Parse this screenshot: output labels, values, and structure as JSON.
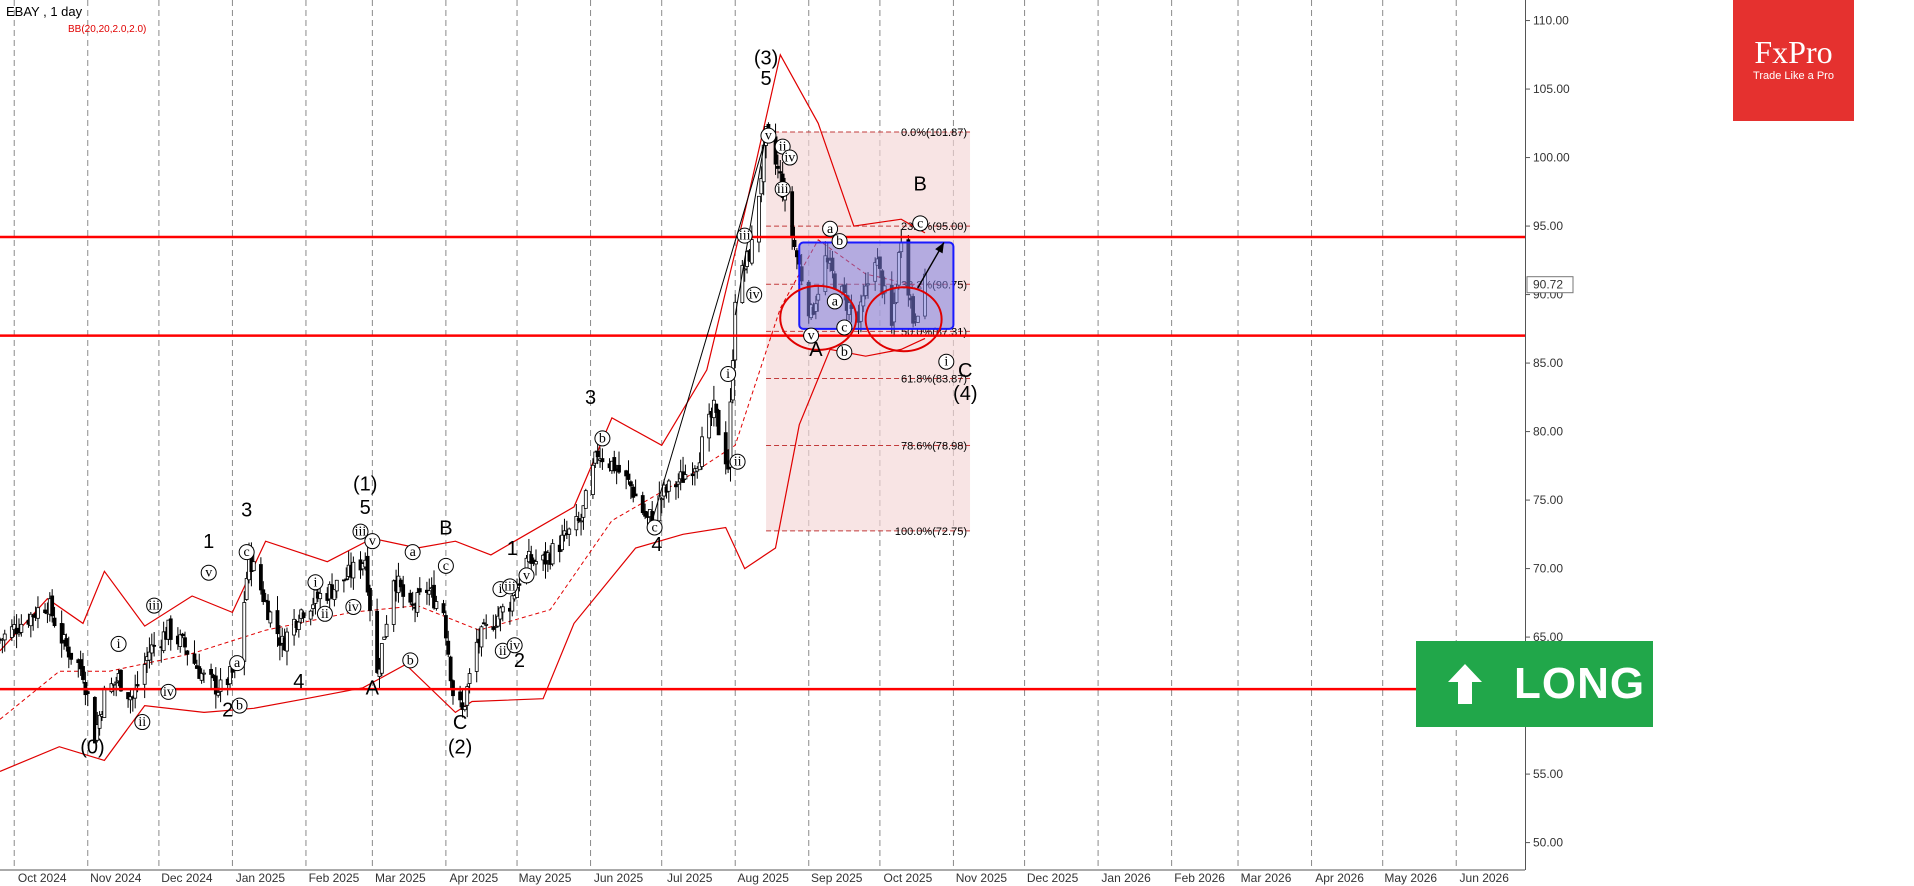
{
  "header": {
    "title": "EBAY , 1 day",
    "indicator": "BB(20,20,2.0,2.0)"
  },
  "logo": {
    "brand": "FxPro",
    "tagline": "Trade Like a Pro"
  },
  "badge": {
    "label": "LONG"
  },
  "colors": {
    "bollinger": "#e00000",
    "support": "#ff0000",
    "range_box": "#1a1aff",
    "fib_zone": "#f4d5d5",
    "badge": "#21a74a",
    "logo": "#e5312f"
  },
  "chart_data": {
    "type": "candlestick",
    "symbol": "EBAY",
    "timeframe": "1 day",
    "ylim": [
      48,
      111.5
    ],
    "y_ticks": [
      "50.00",
      "55.00",
      "60.00",
      "65.00",
      "70.00",
      "75.00",
      "80.00",
      "85.00",
      "90.00",
      "95.00",
      "100.00",
      "105.00",
      "110.00"
    ],
    "x_ticks": [
      "Oct 2024",
      "Nov 2024",
      "Dec 2024",
      "Jan 2025",
      "Feb 2025",
      "Mar 2025",
      "Apr 2025",
      "May 2025",
      "Jun 2025",
      "Jul 2025",
      "Aug 2025",
      "Sep 2025",
      "Oct 2025",
      "Nov 2025",
      "Dec 2025",
      "Jan 2026",
      "Feb 2026",
      "Mar 2026",
      "Apr 2026",
      "May 2026",
      "Jun 2026"
    ],
    "last_price": "90.72",
    "close_path": [
      [
        "2024-09-25",
        64.8
      ],
      [
        "2024-10-05",
        66.2
      ],
      [
        "2024-10-15",
        67.5
      ],
      [
        "2024-10-22",
        64.5
      ],
      [
        "2024-10-30",
        62.5
      ],
      [
        "2024-11-04",
        57.8
      ],
      [
        "2024-11-08",
        60.8
      ],
      [
        "2024-11-14",
        62.0
      ],
      [
        "2024-11-20",
        60.5
      ],
      [
        "2024-11-27",
        64.0
      ],
      [
        "2024-12-05",
        65.5
      ],
      [
        "2024-12-12",
        64.3
      ],
      [
        "2024-12-20",
        62.0
      ],
      [
        "2024-12-27",
        61.2
      ],
      [
        "2025-01-03",
        62.8
      ],
      [
        "2025-01-08",
        71.0
      ],
      [
        "2025-01-15",
        67.5
      ],
      [
        "2025-01-22",
        64.5
      ],
      [
        "2025-01-29",
        66.8
      ],
      [
        "2025-02-05",
        67.8
      ],
      [
        "2025-02-12",
        68.5
      ],
      [
        "2025-02-19",
        69.5
      ],
      [
        "2025-02-26",
        70.8
      ],
      [
        "2025-03-03",
        62.2
      ],
      [
        "2025-03-10",
        69.5
      ],
      [
        "2025-03-17",
        66.8
      ],
      [
        "2025-03-24",
        68.5
      ],
      [
        "2025-03-31",
        67.0
      ],
      [
        "2025-04-04",
        61.0
      ],
      [
        "2025-04-08",
        59.5
      ],
      [
        "2025-04-14",
        64.5
      ],
      [
        "2025-04-21",
        66.2
      ],
      [
        "2025-04-28",
        67.5
      ],
      [
        "2025-05-05",
        70.5
      ],
      [
        "2025-05-12",
        70.5
      ],
      [
        "2025-05-20",
        72.0
      ],
      [
        "2025-05-28",
        73.5
      ],
      [
        "2025-06-04",
        78.5
      ],
      [
        "2025-06-11",
        77.5
      ],
      [
        "2025-06-18",
        76.0
      ],
      [
        "2025-06-25",
        73.5
      ],
      [
        "2025-07-02",
        75.5
      ],
      [
        "2025-07-09",
        76.5
      ],
      [
        "2025-07-16",
        78.0
      ],
      [
        "2025-07-23",
        81.5
      ],
      [
        "2025-07-29",
        77.5
      ],
      [
        "2025-08-01",
        90.0
      ],
      [
        "2025-08-08",
        93.5
      ],
      [
        "2025-08-14",
        101.5
      ],
      [
        "2025-08-20",
        98.5
      ],
      [
        "2025-08-26",
        93.5
      ],
      [
        "2025-09-02",
        88.5
      ],
      [
        "2025-09-08",
        92.5
      ],
      [
        "2025-09-15",
        90.0
      ],
      [
        "2025-09-22",
        88.0
      ],
      [
        "2025-09-29",
        93.0
      ],
      [
        "2025-10-06",
        87.5
      ],
      [
        "2025-10-10",
        94.5
      ],
      [
        "2025-10-15",
        88.2
      ],
      [
        "2025-10-20",
        90.72
      ]
    ],
    "bollinger_upper": [
      [
        "2024-09-25",
        64.0
      ],
      [
        "2024-10-15",
        67.8
      ],
      [
        "2024-10-30",
        66.0
      ],
      [
        "2024-11-08",
        69.8
      ],
      [
        "2024-11-25",
        65.8
      ],
      [
        "2024-12-15",
        68.0
      ],
      [
        "2025-01-01",
        66.8
      ],
      [
        "2025-01-15",
        72.0
      ],
      [
        "2025-02-10",
        70.5
      ],
      [
        "2025-03-01",
        72.2
      ],
      [
        "2025-03-20",
        71.5
      ],
      [
        "2025-04-05",
        72.0
      ],
      [
        "2025-04-20",
        71.0
      ],
      [
        "2025-05-05",
        72.5
      ],
      [
        "2025-05-25",
        74.5
      ],
      [
        "2025-06-10",
        81.0
      ],
      [
        "2025-07-01",
        79.0
      ],
      [
        "2025-07-20",
        84.5
      ],
      [
        "2025-08-05",
        96.0
      ],
      [
        "2025-08-20",
        107.5
      ],
      [
        "2025-09-05",
        102.5
      ],
      [
        "2025-09-20",
        95.0
      ],
      [
        "2025-10-10",
        95.5
      ],
      [
        "2025-10-20",
        94.5
      ]
    ],
    "bollinger_lower": [
      [
        "2024-09-25",
        55.2
      ],
      [
        "2024-10-20",
        57.0
      ],
      [
        "2024-11-08",
        56.0
      ],
      [
        "2024-11-25",
        60.0
      ],
      [
        "2024-12-20",
        59.5
      ],
      [
        "2025-01-10",
        59.8
      ],
      [
        "2025-02-01",
        60.5
      ],
      [
        "2025-02-25",
        61.3
      ],
      [
        "2025-03-15",
        63.0
      ],
      [
        "2025-04-05",
        59.5
      ],
      [
        "2025-04-12",
        60.3
      ],
      [
        "2025-05-12",
        60.5
      ],
      [
        "2025-05-25",
        66.0
      ],
      [
        "2025-06-20",
        71.5
      ],
      [
        "2025-07-10",
        72.5
      ],
      [
        "2025-07-28",
        73.0
      ],
      [
        "2025-08-05",
        70.0
      ],
      [
        "2025-08-18",
        71.5
      ],
      [
        "2025-08-28",
        80.5
      ],
      [
        "2025-09-10",
        86.0
      ],
      [
        "2025-09-25",
        85.5
      ],
      [
        "2025-10-10",
        86.0
      ],
      [
        "2025-10-20",
        86.8
      ]
    ],
    "bollinger_mid": [
      [
        "2024-09-25",
        59.0
      ],
      [
        "2024-10-20",
        62.5
      ],
      [
        "2024-11-10",
        62.5
      ],
      [
        "2024-12-15",
        63.8
      ],
      [
        "2025-01-15",
        65.5
      ],
      [
        "2025-02-20",
        66.8
      ],
      [
        "2025-03-20",
        67.3
      ],
      [
        "2025-04-15",
        65.5
      ],
      [
        "2025-05-15",
        67.0
      ],
      [
        "2025-06-10",
        73.5
      ],
      [
        "2025-07-10",
        76.5
      ],
      [
        "2025-08-01",
        79.0
      ],
      [
        "2025-08-20",
        89.0
      ],
      [
        "2025-09-05",
        94.0
      ],
      [
        "2025-09-25",
        91.5
      ],
      [
        "2025-10-20",
        90.5
      ]
    ],
    "support_lines": [
      94.2,
      87.0,
      61.2
    ],
    "range_box": {
      "x1": "2025-08-28",
      "x2": "2025-11-01",
      "y1": 93.8,
      "y2": 87.5
    },
    "fib_zone": {
      "x1": "2025-08-14",
      "x2": "2025-11-08",
      "y_top": 101.87,
      "y_bottom": 72.75
    },
    "fib_levels": [
      {
        "label": "0.0%(101.87)",
        "value": 101.87
      },
      {
        "label": "23.6%(95.00)",
        "value": 95.0
      },
      {
        "label": "38.2%(90.75)",
        "value": 90.75
      },
      {
        "label": "50.0%(87.31)",
        "value": 87.31
      },
      {
        "label": "61.8%(83.87)",
        "value": 83.87
      },
      {
        "label": "78.6%(78.98)",
        "value": 78.98
      },
      {
        "label": "100.0%(72.75)",
        "value": 72.75
      }
    ],
    "circles": [
      {
        "x": "2025-09-05",
        "y": 88.3
      },
      {
        "x": "2025-10-11",
        "y": 88.2
      }
    ],
    "forecast_arrow": {
      "from": [
        "2025-10-17",
        90.5
      ],
      "to": [
        "2025-10-28",
        93.8
      ]
    },
    "impulse_lines": [
      [
        [
          "2025-06-27",
          73.5
        ],
        [
          "2025-08-14",
          101.5
        ]
      ],
      [
        [
          "2025-08-01",
          88.5
        ],
        [
          "2025-08-14",
          101.8
        ]
      ]
    ],
    "wave_labels": [
      {
        "text": "(0)",
        "x": "2024-11-03",
        "y": 56.5
      },
      {
        "text": "1",
        "x": "2024-12-22",
        "y": 71.5
      },
      {
        "text": "2",
        "x": "2024-12-30",
        "y": 59.2
      },
      {
        "text": "3",
        "x": "2025-01-07",
        "y": 73.8
      },
      {
        "text": "4",
        "x": "2025-01-29",
        "y": 61.3
      },
      {
        "text": "(1)",
        "x": "2025-02-26",
        "y": 75.7
      },
      {
        "text": "5",
        "x": "2025-02-26",
        "y": 74.0
      },
      {
        "text": "A",
        "x": "2025-03-01",
        "y": 60.8
      },
      {
        "text": "B",
        "x": "2025-04-01",
        "y": 72.5
      },
      {
        "text": "C",
        "x": "2025-04-07",
        "y": 58.3
      },
      {
        "text": "(2)",
        "x": "2025-04-07",
        "y": 56.5
      },
      {
        "text": "1",
        "x": "2025-04-29",
        "y": 71.0
      },
      {
        "text": "2",
        "x": "2025-05-02",
        "y": 62.8
      },
      {
        "text": "3",
        "x": "2025-06-01",
        "y": 82.0
      },
      {
        "text": "4",
        "x": "2025-06-29",
        "y": 71.3
      },
      {
        "text": "(3)",
        "x": "2025-08-14",
        "y": 106.8
      },
      {
        "text": "5",
        "x": "2025-08-14",
        "y": 105.3
      },
      {
        "text": "A",
        "x": "2025-09-04",
        "y": 85.5
      },
      {
        "text": "B",
        "x": "2025-10-18",
        "y": 97.6
      },
      {
        "text": "C",
        "x": "2025-11-06",
        "y": 84.0
      },
      {
        "text": "(4)",
        "x": "2025-11-06",
        "y": 82.3
      }
    ],
    "sub_wave_labels": [
      {
        "text": "i",
        "x": "2024-11-14",
        "y": 64.5
      },
      {
        "text": "ii",
        "x": "2024-11-24",
        "y": 58.8
      },
      {
        "text": "iii",
        "x": "2024-11-29",
        "y": 67.3
      },
      {
        "text": "iv",
        "x": "2024-12-05",
        "y": 61.0
      },
      {
        "text": "v",
        "x": "2024-12-22",
        "y": 69.7
      },
      {
        "text": "a",
        "x": "2025-01-03",
        "y": 63.1
      },
      {
        "text": "b",
        "x": "2025-01-04",
        "y": 60.0
      },
      {
        "text": "c",
        "x": "2025-01-07",
        "y": 71.2
      },
      {
        "text": "i",
        "x": "2025-02-05",
        "y": 69.0
      },
      {
        "text": "ii",
        "x": "2025-02-09",
        "y": 66.7
      },
      {
        "text": "iii",
        "x": "2025-02-24",
        "y": 72.7
      },
      {
        "text": "iv",
        "x": "2025-02-21",
        "y": 67.2
      },
      {
        "text": "v",
        "x": "2025-03-01",
        "y": 72.0
      },
      {
        "text": "a",
        "x": "2025-03-18",
        "y": 71.2
      },
      {
        "text": "b",
        "x": "2025-03-17",
        "y": 63.3
      },
      {
        "text": "c",
        "x": "2025-04-01",
        "y": 70.2
      },
      {
        "text": "i",
        "x": "2025-04-24",
        "y": 68.5
      },
      {
        "text": "ii",
        "x": "2025-04-25",
        "y": 64.0
      },
      {
        "text": "iii",
        "x": "2025-04-28",
        "y": 68.7
      },
      {
        "text": "iv",
        "x": "2025-04-30",
        "y": 64.4
      },
      {
        "text": "v",
        "x": "2025-05-05",
        "y": 69.5
      },
      {
        "text": "b",
        "x": "2025-06-06",
        "y": 79.5
      },
      {
        "text": "c",
        "x": "2025-06-28",
        "y": 73.0
      },
      {
        "text": "i",
        "x": "2025-07-29",
        "y": 84.2
      },
      {
        "text": "ii",
        "x": "2025-08-02",
        "y": 77.8
      },
      {
        "text": "iii",
        "x": "2025-08-05",
        "y": 94.3
      },
      {
        "text": "iv",
        "x": "2025-08-09",
        "y": 90.0
      },
      {
        "text": "v",
        "x": "2025-08-15",
        "y": 101.6
      },
      {
        "text": "ii",
        "x": "2025-08-21",
        "y": 100.8
      },
      {
        "text": "iv",
        "x": "2025-08-24",
        "y": 100.0
      },
      {
        "text": "iii",
        "x": "2025-08-21",
        "y": 97.7
      },
      {
        "text": "a",
        "x": "2025-09-10",
        "y": 94.8
      },
      {
        "text": "b",
        "x": "2025-09-14",
        "y": 93.9
      },
      {
        "text": "v",
        "x": "2025-09-02",
        "y": 87.0
      },
      {
        "text": "a",
        "x": "2025-09-12",
        "y": 89.5
      },
      {
        "text": "c",
        "x": "2025-09-16",
        "y": 87.6
      },
      {
        "text": "b",
        "x": "2025-09-16",
        "y": 85.8
      },
      {
        "text": "c",
        "x": "2025-10-18",
        "y": 95.2
      },
      {
        "text": "i",
        "x": "2025-10-29",
        "y": 85.1
      }
    ]
  }
}
